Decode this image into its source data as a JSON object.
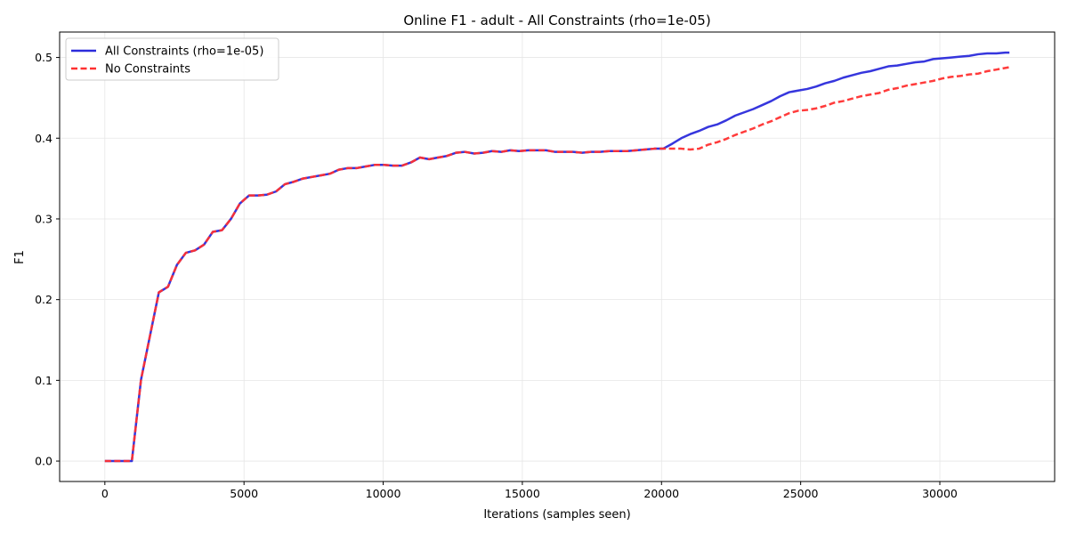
{
  "chart_data": {
    "type": "line",
    "title": "Online F1 - adult - All Constraints (rho=1e-05)",
    "xlabel": "Iterations (samples seen)",
    "ylabel": "F1",
    "xlim": [
      -1625,
      34125
    ],
    "ylim": [
      -0.0253,
      0.5315
    ],
    "xticks": [
      0,
      5000,
      10000,
      15000,
      20000,
      25000,
      30000
    ],
    "xtick_labels": [
      "0",
      "5000",
      "10000",
      "15000",
      "20000",
      "25000",
      "30000"
    ],
    "yticks": [
      0.0,
      0.1,
      0.2,
      0.3,
      0.4,
      0.5
    ],
    "ytick_labels": [
      "0.0",
      "0.1",
      "0.2",
      "0.3",
      "0.4",
      "0.5"
    ],
    "grid": true,
    "legend_position": "top-left",
    "series": [
      {
        "name": "All Constraints (rho=1e-05)",
        "color": "#2b2bdb",
        "style": "solid",
        "x": [
          0,
          320,
          650,
          970,
          1300,
          1620,
          1940,
          2270,
          2590,
          2910,
          3240,
          3560,
          3880,
          4210,
          4530,
          4850,
          5180,
          5500,
          5820,
          6150,
          6470,
          6790,
          7120,
          7440,
          7770,
          8090,
          8410,
          8740,
          9060,
          9380,
          9710,
          10030,
          10350,
          10680,
          11000,
          11320,
          11650,
          11970,
          12290,
          12620,
          12940,
          13270,
          13590,
          13910,
          14240,
          14560,
          14880,
          15210,
          15530,
          15850,
          16180,
          16500,
          16820,
          17150,
          17470,
          17790,
          18120,
          18440,
          18770,
          19090,
          19410,
          19740,
          20060,
          20380,
          20710,
          21030,
          21350,
          21680,
          22000,
          22320,
          22650,
          22970,
          23290,
          23620,
          23940,
          24260,
          24590,
          24910,
          25240,
          25560,
          25880,
          26210,
          26530,
          26850,
          27180,
          27500,
          27820,
          28150,
          28470,
          28790,
          29120,
          29440,
          29760,
          30090,
          30410,
          30730,
          31060,
          31380,
          31700,
          32030,
          32350,
          32500
        ],
        "y": [
          0.0,
          0.0,
          0.0,
          0.0,
          0.101,
          0.155,
          0.209,
          0.216,
          0.243,
          0.258,
          0.261,
          0.268,
          0.284,
          0.286,
          0.3,
          0.319,
          0.329,
          0.329,
          0.33,
          0.334,
          0.343,
          0.346,
          0.35,
          0.352,
          0.354,
          0.356,
          0.361,
          0.363,
          0.363,
          0.365,
          0.367,
          0.367,
          0.366,
          0.366,
          0.37,
          0.376,
          0.374,
          0.376,
          0.378,
          0.382,
          0.383,
          0.381,
          0.382,
          0.384,
          0.383,
          0.385,
          0.384,
          0.385,
          0.385,
          0.385,
          0.383,
          0.383,
          0.383,
          0.382,
          0.383,
          0.383,
          0.384,
          0.384,
          0.384,
          0.385,
          0.386,
          0.387,
          0.387,
          0.393,
          0.4,
          0.405,
          0.409,
          0.414,
          0.417,
          0.422,
          0.428,
          0.432,
          0.436,
          0.441,
          0.446,
          0.452,
          0.457,
          0.459,
          0.461,
          0.464,
          0.468,
          0.471,
          0.475,
          0.478,
          0.481,
          0.483,
          0.486,
          0.489,
          0.49,
          0.492,
          0.494,
          0.495,
          0.498,
          0.499,
          0.5,
          0.501,
          0.502,
          0.504,
          0.505,
          0.505,
          0.506,
          0.506
        ]
      },
      {
        "name": "No Constraints",
        "color": "#ff3030",
        "style": "dashed",
        "x": [
          0,
          320,
          650,
          970,
          1300,
          1620,
          1940,
          2270,
          2590,
          2910,
          3240,
          3560,
          3880,
          4210,
          4530,
          4850,
          5180,
          5500,
          5820,
          6150,
          6470,
          6790,
          7120,
          7440,
          7770,
          8090,
          8410,
          8740,
          9060,
          9380,
          9710,
          10030,
          10350,
          10680,
          11000,
          11320,
          11650,
          11970,
          12290,
          12620,
          12940,
          13270,
          13590,
          13910,
          14240,
          14560,
          14880,
          15210,
          15530,
          15850,
          16180,
          16500,
          16820,
          17150,
          17470,
          17790,
          18120,
          18440,
          18770,
          19090,
          19410,
          19740,
          20060,
          20380,
          20710,
          21030,
          21350,
          21680,
          22000,
          22320,
          22650,
          22970,
          23290,
          23620,
          23940,
          24260,
          24590,
          24910,
          25240,
          25560,
          25880,
          26210,
          26530,
          26850,
          27180,
          27500,
          27820,
          28150,
          28470,
          28790,
          29120,
          29440,
          29760,
          30090,
          30410,
          30730,
          31060,
          31380,
          31700,
          32030,
          32350,
          32500
        ],
        "y": [
          0.0,
          0.0,
          0.0,
          0.0,
          0.101,
          0.155,
          0.209,
          0.216,
          0.243,
          0.258,
          0.261,
          0.268,
          0.284,
          0.286,
          0.3,
          0.319,
          0.329,
          0.329,
          0.33,
          0.334,
          0.343,
          0.346,
          0.35,
          0.352,
          0.354,
          0.356,
          0.361,
          0.363,
          0.363,
          0.365,
          0.367,
          0.367,
          0.366,
          0.366,
          0.37,
          0.376,
          0.374,
          0.376,
          0.378,
          0.382,
          0.383,
          0.381,
          0.382,
          0.384,
          0.383,
          0.385,
          0.384,
          0.385,
          0.385,
          0.385,
          0.383,
          0.383,
          0.383,
          0.382,
          0.383,
          0.383,
          0.384,
          0.384,
          0.384,
          0.385,
          0.386,
          0.387,
          0.387,
          0.387,
          0.387,
          0.386,
          0.387,
          0.392,
          0.395,
          0.399,
          0.404,
          0.408,
          0.412,
          0.417,
          0.421,
          0.426,
          0.431,
          0.434,
          0.435,
          0.437,
          0.44,
          0.444,
          0.446,
          0.449,
          0.452,
          0.454,
          0.456,
          0.46,
          0.462,
          0.465,
          0.467,
          0.469,
          0.471,
          0.474,
          0.476,
          0.477,
          0.479,
          0.48,
          0.483,
          0.485,
          0.487,
          0.488
        ]
      }
    ]
  }
}
